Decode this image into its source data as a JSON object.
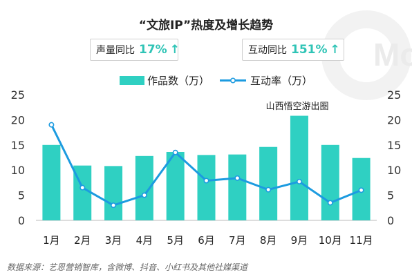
{
  "title": "“文旅IP”热度及增长趋势",
  "watermark_text": "Mo",
  "stats": [
    {
      "label": "声量同比",
      "value": "17%",
      "arrow": "↑"
    },
    {
      "label": "互动同比",
      "value": "151%",
      "arrow": "↑"
    }
  ],
  "footer": "数据来源：艺恩营销智库，含微博、抖音、小红书及其他社媒渠道",
  "colors": {
    "bar": "#2fd0c2",
    "line": "#1c9be0",
    "accent": "#2fc4b6"
  },
  "chart_data": {
    "type": "bar",
    "categories": [
      "1月",
      "2月",
      "3月",
      "4月",
      "5月",
      "6月",
      "7月",
      "8月",
      "9月",
      "10月",
      "11月"
    ],
    "series": [
      {
        "name": "作品数（万）",
        "type": "bar",
        "axis": "left",
        "values": [
          15.0,
          10.9,
          10.8,
          12.8,
          13.6,
          13.0,
          13.1,
          14.6,
          20.8,
          15.0,
          12.4
        ]
      },
      {
        "name": "互动率（万）",
        "type": "line",
        "axis": "right",
        "values": [
          19.0,
          6.5,
          3.0,
          5.0,
          13.5,
          7.9,
          8.4,
          6.1,
          7.7,
          3.5,
          6.0
        ]
      }
    ],
    "ylim": [
      0,
      25
    ],
    "y2lim": [
      0,
      25
    ],
    "yticks": [
      0,
      5,
      10,
      15,
      20,
      25
    ],
    "annotation": {
      "text": "山西悟空游出圈",
      "category": "9月"
    },
    "legend_position": "top"
  }
}
